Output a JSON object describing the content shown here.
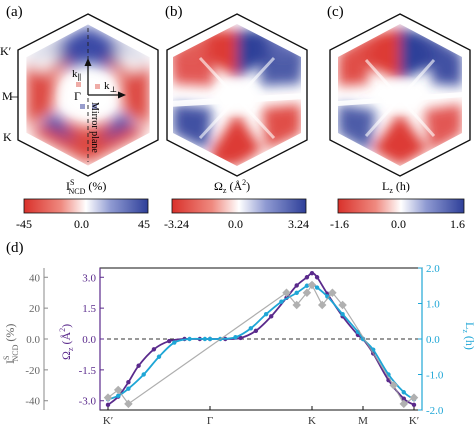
{
  "panels": {
    "a": {
      "label": "(a)",
      "axis_labels": {
        "k_parallel": "k",
        "k_perp": "k",
        "gamma": "Γ",
        "mirror": "Mirror plane"
      },
      "side_labels": {
        "k_prime": "K′",
        "m": "M",
        "k": "K"
      },
      "colorbar": {
        "title_main": "I",
        "title_sup": "S",
        "title_sub": "NCD",
        "title_unit": " (%)",
        "min": "-45",
        "mid": "0.0",
        "max": "45"
      }
    },
    "b": {
      "label": "(b)",
      "colorbar": {
        "title_main": "Ω",
        "title_sub": "z",
        "title_unit": " (Å",
        "title_sup": "2",
        "title_close": ")",
        "min": "-3.24",
        "mid": "0.0",
        "max": "3.24"
      }
    },
    "c": {
      "label": "(c)",
      "colorbar": {
        "title_main": "L",
        "title_sub": "z",
        "title_unit": " (h)",
        "min": "-1.6",
        "mid": "0.0",
        "max": "1.6"
      }
    },
    "d": {
      "label": "(d)"
    }
  },
  "colors": {
    "red": "#d9312b",
    "blue": "#2e3f99",
    "purple": "#5a2a8c",
    "cyan": "#1ea6d6",
    "gray": "#9a9a9a"
  },
  "chart_data": {
    "type": "line",
    "x_ticks": [
      "K′",
      "Γ",
      "K",
      "M",
      "K′"
    ],
    "x_tick_positions": [
      0,
      1,
      2,
      2.5,
      3
    ],
    "left_axis": {
      "label_main": "I",
      "label_sup": "S",
      "label_sub": "NCD",
      "label_unit": " (%)",
      "ticks": [
        "40",
        "20",
        "0.0",
        "-20",
        "-40"
      ],
      "ylim": [
        -46,
        46
      ]
    },
    "mid_axis": {
      "label_main": "Ω",
      "label_sub": "z",
      "label_unit": " (Å",
      "label_sup": "2",
      "label_close": ")",
      "ticks": [
        "3.0",
        "1.5",
        "0.0",
        "-1.5",
        "-3.0"
      ],
      "ylim": [
        -3.45,
        3.45
      ]
    },
    "right_axis": {
      "label_main": "L",
      "label_sub": "z",
      "label_unit": " (h)",
      "ticks": [
        "2.0",
        "1.0",
        "0.0",
        "-1.0",
        "-2.0"
      ],
      "ylim": [
        -2.0,
        2.0
      ]
    },
    "series": [
      {
        "axis": "mid",
        "color": "#5a2a8c",
        "x": [
          0,
          0.1,
          0.2,
          0.3,
          0.45,
          0.6,
          0.75,
          0.9,
          1.0,
          1.15,
          1.3,
          1.45,
          1.6,
          1.75,
          1.85,
          1.95,
          2.0,
          2.05,
          2.15,
          2.3,
          2.45,
          2.5,
          2.6,
          2.75,
          2.9,
          3.0
        ],
        "y": [
          -3.2,
          -2.8,
          -2.1,
          -1.3,
          -0.5,
          -0.1,
          0.0,
          0.0,
          0.0,
          0.0,
          0.05,
          0.4,
          1.1,
          2.0,
          2.6,
          3.0,
          3.2,
          3.0,
          2.2,
          1.1,
          0.2,
          0.0,
          -0.7,
          -2.0,
          -2.9,
          -3.2
        ]
      },
      {
        "axis": "right",
        "color": "#1ea6d6",
        "x": [
          0,
          0.1,
          0.2,
          0.35,
          0.5,
          0.65,
          0.8,
          0.95,
          1.0,
          1.1,
          1.25,
          1.4,
          1.55,
          1.7,
          1.85,
          1.95,
          2.0,
          2.05,
          2.15,
          2.3,
          2.45,
          2.5,
          2.6,
          2.75,
          2.9,
          3.0
        ],
        "y": [
          -1.7,
          -1.6,
          -1.4,
          -1.0,
          -0.5,
          -0.1,
          0.0,
          0.0,
          0.0,
          0.0,
          0.05,
          0.3,
          0.7,
          1.05,
          1.3,
          1.5,
          1.55,
          1.45,
          1.2,
          0.7,
          0.2,
          0.0,
          -0.3,
          -1.0,
          -1.5,
          -1.7
        ]
      },
      {
        "axis": "left",
        "color": "#9a9a9a",
        "x": [
          0,
          0.1,
          0.2,
          1.75,
          1.85,
          1.95,
          2.0,
          2.1,
          2.2,
          2.3,
          2.8,
          2.9,
          3.0
        ],
        "y": [
          -38,
          -33,
          -42,
          30,
          22,
          30,
          35,
          22,
          30,
          22,
          -30,
          -42,
          -38
        ]
      }
    ]
  }
}
